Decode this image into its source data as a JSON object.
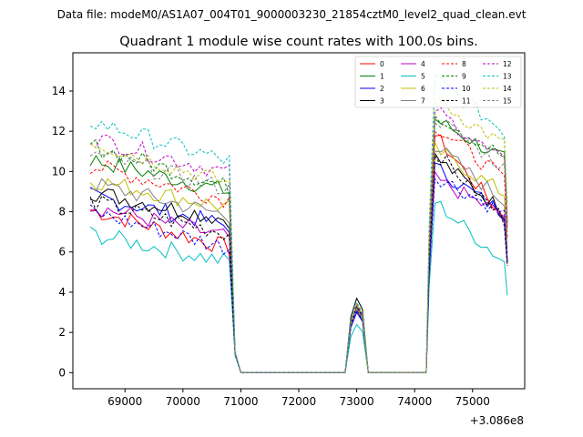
{
  "chart_data": {
    "type": "line",
    "suptitle": "Data file: modeM0/AS1A07_004T01_9000003230_21854cztM0_level2_quad_clean.evt",
    "title": "Quadrant 1 module wise count rates with 100.0s bins.",
    "xlabel": "",
    "ylabel": "",
    "x_offset_label": "+3.086e8",
    "xlim": [
      68100,
      75900
    ],
    "ylim": [
      -0.8,
      15.9
    ],
    "xticks": [
      69000,
      70000,
      71000,
      72000,
      73000,
      74000,
      75000
    ],
    "xtick_labels": [
      "69000",
      "70000",
      "71000",
      "72000",
      "73000",
      "74000",
      "75000"
    ],
    "yticks": [
      0,
      2,
      4,
      6,
      8,
      10,
      12,
      14
    ],
    "ytick_labels": [
      "0",
      "2",
      "4",
      "6",
      "8",
      "10",
      "12",
      "14"
    ],
    "grid": false,
    "legend_position": "top-right",
    "legend_columns": 4,
    "segment_1": {
      "start": 68400,
      "step": 100,
      "count": 25
    },
    "series": [
      {
        "name": "0",
        "color": "#ff0000",
        "dash": "solid",
        "base1": 8.1,
        "decay1": 1.9,
        "peak1": 0.95,
        "gap": 3.0,
        "base3": 11.8,
        "end3": 7.7
      },
      {
        "name": "1",
        "color": "#008000",
        "dash": "solid",
        "base1": 10.6,
        "decay1": 1.6,
        "peak1": 0.95,
        "gap": 3.1,
        "base3": 12.6,
        "end3": 10.6
      },
      {
        "name": "2",
        "color": "#0000ff",
        "dash": "solid",
        "base1": 8.8,
        "decay1": 1.5,
        "peak1": 0.95,
        "gap": 3.0,
        "base3": 10.2,
        "end3": 7.9
      },
      {
        "name": "3",
        "color": "#000000",
        "dash": "solid",
        "base1": 9.0,
        "decay1": 1.4,
        "peak1": 1.0,
        "gap": 3.7,
        "base3": 10.7,
        "end3": 8.0
      },
      {
        "name": "4",
        "color": "#bf00bf",
        "dash": "solid",
        "base1": 8.3,
        "decay1": 1.6,
        "peak1": 0.95,
        "gap": 3.3,
        "base3": 9.6,
        "end3": 7.8
      },
      {
        "name": "5",
        "color": "#00bfbf",
        "dash": "solid",
        "base1": 6.9,
        "decay1": 1.4,
        "peak1": 0.85,
        "gap": 2.4,
        "base3": 8.5,
        "end3": 5.5
      },
      {
        "name": "6",
        "color": "#bfbf00",
        "dash": "solid",
        "base1": 9.6,
        "decay1": 1.4,
        "peak1": 1.0,
        "gap": 3.2,
        "base3": 11.1,
        "end3": 8.9
      },
      {
        "name": "7",
        "color": "#808080",
        "dash": "solid",
        "base1": 9.4,
        "decay1": 1.6,
        "peak1": 0.95,
        "gap": 3.1,
        "base3": 11.3,
        "end3": 8.5
      },
      {
        "name": "8",
        "color": "#ff0000",
        "dash": "dashed",
        "base1": 10.3,
        "decay1": 1.7,
        "peak1": 1.0,
        "gap": 3.2,
        "base3": 12.3,
        "end3": 9.6
      },
      {
        "name": "9",
        "color": "#008000",
        "dash": "dashed",
        "base1": 11.3,
        "decay1": 2.1,
        "peak1": 1.0,
        "gap": 3.3,
        "base3": 12.9,
        "end3": 10.7
      },
      {
        "name": "10",
        "color": "#0000ff",
        "dash": "dashed",
        "base1": 8.0,
        "decay1": 1.8,
        "peak1": 0.9,
        "gap": 3.1,
        "base3": 9.8,
        "end3": 7.9
      },
      {
        "name": "11",
        "color": "#000000",
        "dash": "dashed",
        "base1": 8.5,
        "decay1": 1.6,
        "peak1": 0.95,
        "gap": 3.3,
        "base3": 11.0,
        "end3": 7.6
      },
      {
        "name": "12",
        "color": "#bf00bf",
        "dash": "dashed",
        "base1": 11.7,
        "decay1": 1.8,
        "peak1": 1.0,
        "gap": 3.4,
        "base3": 13.1,
        "end3": 10.4
      },
      {
        "name": "13",
        "color": "#00bfbf",
        "dash": "dashed",
        "base1": 12.5,
        "decay1": 2.0,
        "peak1": 1.0,
        "gap": 3.5,
        "base3": 14.6,
        "end3": 12.0
      },
      {
        "name": "14",
        "color": "#bfbf00",
        "dash": "dashed",
        "base1": 11.5,
        "decay1": 2.1,
        "peak1": 1.0,
        "gap": 3.4,
        "base3": 13.6,
        "end3": 11.3
      },
      {
        "name": "15",
        "color": "#808080",
        "dash": "dashed",
        "base1": 10.9,
        "decay1": 1.8,
        "peak1": 1.0,
        "gap": 3.2,
        "base3": 12.7,
        "end3": 10.2
      }
    ]
  }
}
